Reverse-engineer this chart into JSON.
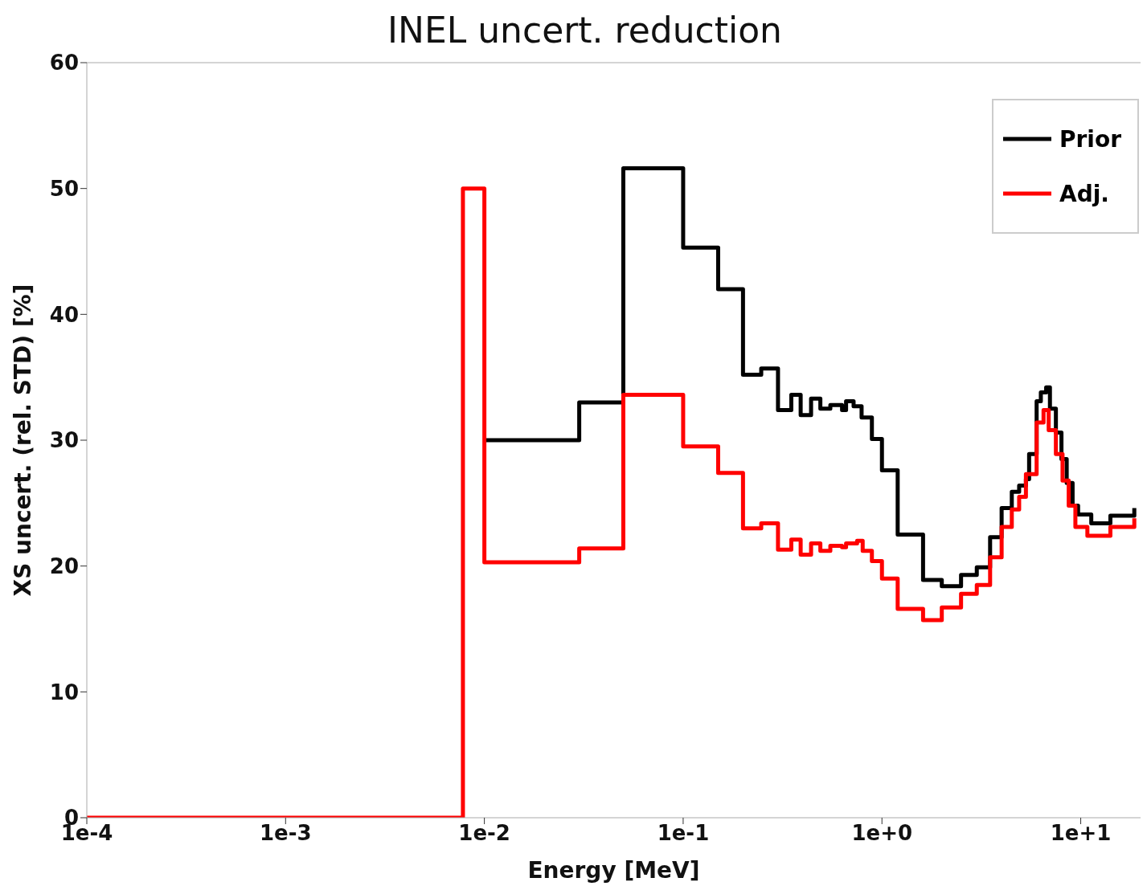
{
  "chart_data": {
    "type": "step",
    "title": "INEL uncert. reduction",
    "xlabel": "Energy [MeV]",
    "ylabel": "XS uncert. (rel. STD) [%]",
    "log": "x",
    "xlim": [
      0.0001,
      20
    ],
    "ylim": [
      0,
      60
    ],
    "xticks": [
      {
        "value": 0.0001,
        "label": "1e-4"
      },
      {
        "value": 0.001,
        "label": "1e-3"
      },
      {
        "value": 0.01,
        "label": "1e-2"
      },
      {
        "value": 0.1,
        "label": "1e-1"
      },
      {
        "value": 1,
        "label": "1e+0"
      },
      {
        "value": 10,
        "label": "1e+1"
      }
    ],
    "yticks": [
      0,
      10,
      20,
      30,
      40,
      50,
      60
    ],
    "legend": "top right",
    "line_style": "solid",
    "marker": "none",
    "series": [
      {
        "name": "Prior",
        "color": "#000000",
        "x": [
          0.01,
          0.03,
          0.05,
          0.1,
          0.15,
          0.2,
          0.247,
          0.3,
          0.35,
          0.39,
          0.44,
          0.49,
          0.55,
          0.63,
          0.66,
          0.72,
          0.79,
          0.89,
          1.0,
          1.2,
          1.61,
          2.0,
          2.5,
          3.0,
          3.5,
          4.0,
          4.5,
          4.9,
          5.3,
          5.5,
          6.0,
          6.3,
          6.7,
          7.0,
          7.5,
          8.0,
          8.5,
          9.1,
          9.7,
          11.3,
          14.1,
          18.6
        ],
        "values": [
          30,
          33,
          51.6,
          45.3,
          42,
          35.2,
          35.7,
          32.4,
          33.6,
          32,
          33.3,
          32.5,
          32.8,
          32.4,
          33.1,
          32.7,
          31.8,
          30.1,
          27.6,
          22.5,
          18.9,
          18.4,
          19.3,
          19.9,
          22.3,
          24.6,
          25.9,
          26.4,
          26.9,
          28.9,
          33.1,
          33.8,
          34.2,
          32.5,
          30.6,
          28.5,
          26.6,
          24.8,
          24.1,
          23.4,
          24,
          24.6
        ]
      },
      {
        "name": "Adj.",
        "color": "#ff0000",
        "x": [
          0.0001,
          0.0078,
          0.01,
          0.03,
          0.05,
          0.1,
          0.15,
          0.2,
          0.247,
          0.3,
          0.35,
          0.39,
          0.44,
          0.49,
          0.55,
          0.63,
          0.66,
          0.75,
          0.8,
          0.89,
          1.0,
          1.2,
          1.61,
          2.0,
          2.5,
          3.0,
          3.5,
          4.0,
          4.5,
          4.9,
          5.3,
          6.0,
          6.5,
          6.9,
          7.5,
          8.1,
          8.7,
          9.4,
          10.8,
          14.1,
          18.6
        ],
        "values": [
          0,
          50,
          20.3,
          21.4,
          33.6,
          29.5,
          27.4,
          23,
          23.4,
          21.3,
          22.1,
          20.9,
          21.8,
          21.2,
          21.6,
          21.5,
          21.8,
          22,
          21.2,
          20.4,
          19,
          16.6,
          15.7,
          16.7,
          17.8,
          18.5,
          20.7,
          23.1,
          24.5,
          25.5,
          27.3,
          31.4,
          32.4,
          30.8,
          28.9,
          26.8,
          24.8,
          23.1,
          22.4,
          23.1,
          23.8
        ]
      }
    ]
  }
}
